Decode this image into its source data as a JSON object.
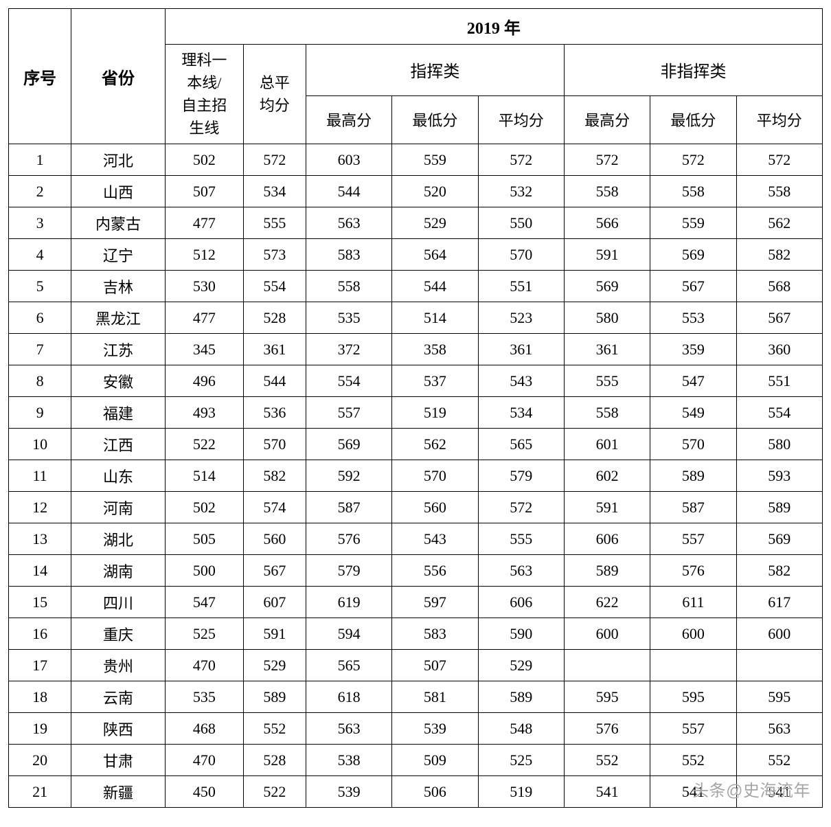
{
  "table": {
    "type": "table",
    "background_color": "#ffffff",
    "border_color": "#000000",
    "text_color": "#000000",
    "font_family": "SimSun",
    "header_font_size": 24,
    "cell_font_size": 22,
    "columns": {
      "index": "序号",
      "province": "省份",
      "year": "2019 年",
      "cutline": "理科一本线/自主招生线",
      "overall_avg": "总平均分",
      "group_a": "指挥类",
      "group_b": "非指挥类",
      "max": "最高分",
      "min": "最低分",
      "avg": "平均分"
    },
    "col_widths": {
      "index": 80,
      "province": 120,
      "cutline": 100,
      "overall_avg": 80,
      "score": 110
    },
    "rows": [
      {
        "idx": "1",
        "prov": "河北",
        "cut": "502",
        "ov": "572",
        "amax": "603",
        "amin": "559",
        "aavg": "572",
        "bmax": "572",
        "bmin": "572",
        "bavg": "572"
      },
      {
        "idx": "2",
        "prov": "山西",
        "cut": "507",
        "ov": "534",
        "amax": "544",
        "amin": "520",
        "aavg": "532",
        "bmax": "558",
        "bmin": "558",
        "bavg": "558"
      },
      {
        "idx": "3",
        "prov": "内蒙古",
        "cut": "477",
        "ov": "555",
        "amax": "563",
        "amin": "529",
        "aavg": "550",
        "bmax": "566",
        "bmin": "559",
        "bavg": "562"
      },
      {
        "idx": "4",
        "prov": "辽宁",
        "cut": "512",
        "ov": "573",
        "amax": "583",
        "amin": "564",
        "aavg": "570",
        "bmax": "591",
        "bmin": "569",
        "bavg": "582"
      },
      {
        "idx": "5",
        "prov": "吉林",
        "cut": "530",
        "ov": "554",
        "amax": "558",
        "amin": "544",
        "aavg": "551",
        "bmax": "569",
        "bmin": "567",
        "bavg": "568"
      },
      {
        "idx": "6",
        "prov": "黑龙江",
        "cut": "477",
        "ov": "528",
        "amax": "535",
        "amin": "514",
        "aavg": "523",
        "bmax": "580",
        "bmin": "553",
        "bavg": "567"
      },
      {
        "idx": "7",
        "prov": "江苏",
        "cut": "345",
        "ov": "361",
        "amax": "372",
        "amin": "358",
        "aavg": "361",
        "bmax": "361",
        "bmin": "359",
        "bavg": "360"
      },
      {
        "idx": "8",
        "prov": "安徽",
        "cut": "496",
        "ov": "544",
        "amax": "554",
        "amin": "537",
        "aavg": "543",
        "bmax": "555",
        "bmin": "547",
        "bavg": "551"
      },
      {
        "idx": "9",
        "prov": "福建",
        "cut": "493",
        "ov": "536",
        "amax": "557",
        "amin": "519",
        "aavg": "534",
        "bmax": "558",
        "bmin": "549",
        "bavg": "554"
      },
      {
        "idx": "10",
        "prov": "江西",
        "cut": "522",
        "ov": "570",
        "amax": "569",
        "amin": "562",
        "aavg": "565",
        "bmax": "601",
        "bmin": "570",
        "bavg": "580"
      },
      {
        "idx": "11",
        "prov": "山东",
        "cut": "514",
        "ov": "582",
        "amax": "592",
        "amin": "570",
        "aavg": "579",
        "bmax": "602",
        "bmin": "589",
        "bavg": "593"
      },
      {
        "idx": "12",
        "prov": "河南",
        "cut": "502",
        "ov": "574",
        "amax": "587",
        "amin": "560",
        "aavg": "572",
        "bmax": "591",
        "bmin": "587",
        "bavg": "589"
      },
      {
        "idx": "13",
        "prov": "湖北",
        "cut": "505",
        "ov": "560",
        "amax": "576",
        "amin": "543",
        "aavg": "555",
        "bmax": "606",
        "bmin": "557",
        "bavg": "569"
      },
      {
        "idx": "14",
        "prov": "湖南",
        "cut": "500",
        "ov": "567",
        "amax": "579",
        "amin": "556",
        "aavg": "563",
        "bmax": "589",
        "bmin": "576",
        "bavg": "582"
      },
      {
        "idx": "15",
        "prov": "四川",
        "cut": "547",
        "ov": "607",
        "amax": "619",
        "amin": "597",
        "aavg": "606",
        "bmax": "622",
        "bmin": "611",
        "bavg": "617"
      },
      {
        "idx": "16",
        "prov": "重庆",
        "cut": "525",
        "ov": "591",
        "amax": "594",
        "amin": "583",
        "aavg": "590",
        "bmax": "600",
        "bmin": "600",
        "bavg": "600"
      },
      {
        "idx": "17",
        "prov": "贵州",
        "cut": "470",
        "ov": "529",
        "amax": "565",
        "amin": "507",
        "aavg": "529",
        "bmax": "",
        "bmin": "",
        "bavg": ""
      },
      {
        "idx": "18",
        "prov": "云南",
        "cut": "535",
        "ov": "589",
        "amax": "618",
        "amin": "581",
        "aavg": "589",
        "bmax": "595",
        "bmin": "595",
        "bavg": "595"
      },
      {
        "idx": "19",
        "prov": "陕西",
        "cut": "468",
        "ov": "552",
        "amax": "563",
        "amin": "539",
        "aavg": "548",
        "bmax": "576",
        "bmin": "557",
        "bavg": "563"
      },
      {
        "idx": "20",
        "prov": "甘肃",
        "cut": "470",
        "ov": "528",
        "amax": "538",
        "amin": "509",
        "aavg": "525",
        "bmax": "552",
        "bmin": "552",
        "bavg": "552"
      },
      {
        "idx": "21",
        "prov": "新疆",
        "cut": "450",
        "ov": "522",
        "amax": "539",
        "amin": "506",
        "aavg": "519",
        "bmax": "541",
        "bmin": "541",
        "bavg": "541"
      }
    ]
  },
  "watermark": "头条@史海流年"
}
